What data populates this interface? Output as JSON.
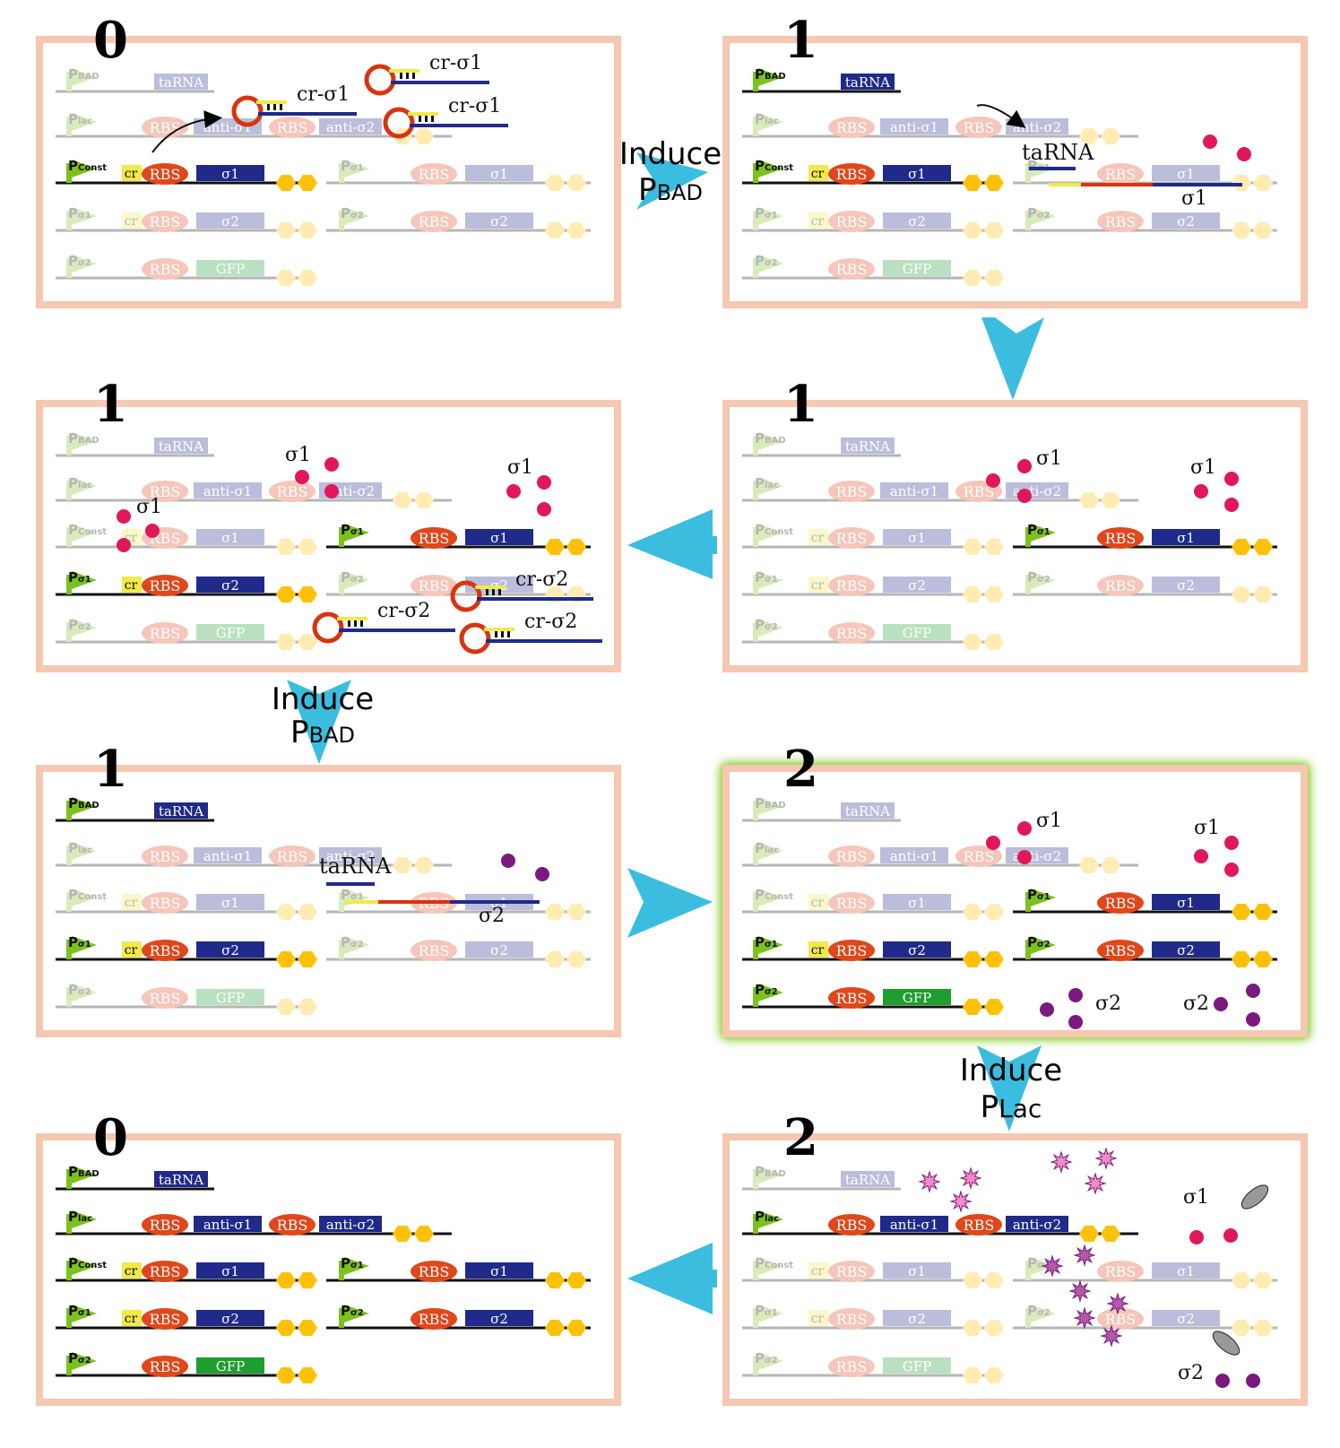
{
  "colors": {
    "panel_border": "#f6c7b1",
    "active_border": "#8fd13a",
    "arrow": "#3bbde0",
    "gene_dark": "#1f2a8a",
    "rbs": "#e0471b",
    "gfp": "#1e9e2e",
    "terminator": "#ffc107",
    "promoter": "#7cc21e",
    "crRNA": "#d9330f",
    "sigma1_dot": "#e0185a",
    "sigma2_dot": "#7a1a7e",
    "yellow_tag": "#f2e94a"
  },
  "icons": [
    "promoter-arrow-icon",
    "terminator-hexagon-icon",
    "crRNA-hairpin-icon",
    "scissors-protein-icon",
    "sigma-dot-icon",
    "anti-sigma-star-icon"
  ],
  "labels": {
    "pbad_p": "P",
    "pbad_sub": "BAD",
    "plac_sub": "lac",
    "pconst_sub": "Const",
    "psig1_sub": "σ1",
    "psig2_sub": "σ2",
    "tarna": "taRNA",
    "rbs": "RBS",
    "gfp": "GFP",
    "sig1": "σ1",
    "sig2": "σ2",
    "anti_sig1": "anti-σ1",
    "anti_sig2": "anti-σ2",
    "cr": "cr",
    "cr_sig1": "cr-σ1",
    "cr_sig2": "cr-σ2"
  },
  "panels": [
    {
      "state": "0"
    },
    {
      "state": "1"
    },
    {
      "state": "1"
    },
    {
      "state": "1"
    },
    {
      "state": "1"
    },
    {
      "state": "2"
    },
    {
      "state": "0"
    },
    {
      "state": "2"
    }
  ],
  "transitions": {
    "induce": "Induce",
    "pbad": "PBAD",
    "plac": "PLac",
    "induce_p": "P",
    "pbad_sub": "BAD",
    "plac_sub": "Lac"
  }
}
